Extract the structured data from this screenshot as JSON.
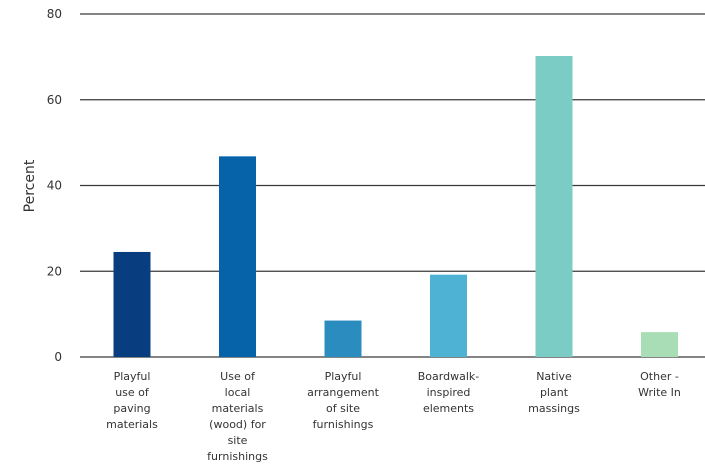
{
  "chart_data": {
    "type": "bar",
    "title": "",
    "xlabel": "",
    "ylabel": "Percent",
    "ylim": [
      0,
      80
    ],
    "yticks": [
      0,
      20,
      40,
      60,
      80
    ],
    "grid": true,
    "categories": [
      [
        "Playful",
        "use of",
        "paving",
        "materials"
      ],
      [
        "Use of",
        "local",
        "materials",
        "(wood) for",
        "site",
        "furnishings"
      ],
      [
        "Playful",
        "arrangement",
        "of site",
        "furnishings"
      ],
      [
        "Boardwalk-",
        "inspired",
        "elements"
      ],
      [
        "Native",
        "plant",
        "massings"
      ],
      [
        "Other -",
        "Write In"
      ]
    ],
    "values": [
      24.5,
      46.8,
      8.5,
      19.2,
      70.2,
      5.8
    ],
    "colors": [
      "#083d7f",
      "#0763a9",
      "#2b8cbf",
      "#4db2d4",
      "#7bccc4",
      "#a8ddb5"
    ]
  }
}
